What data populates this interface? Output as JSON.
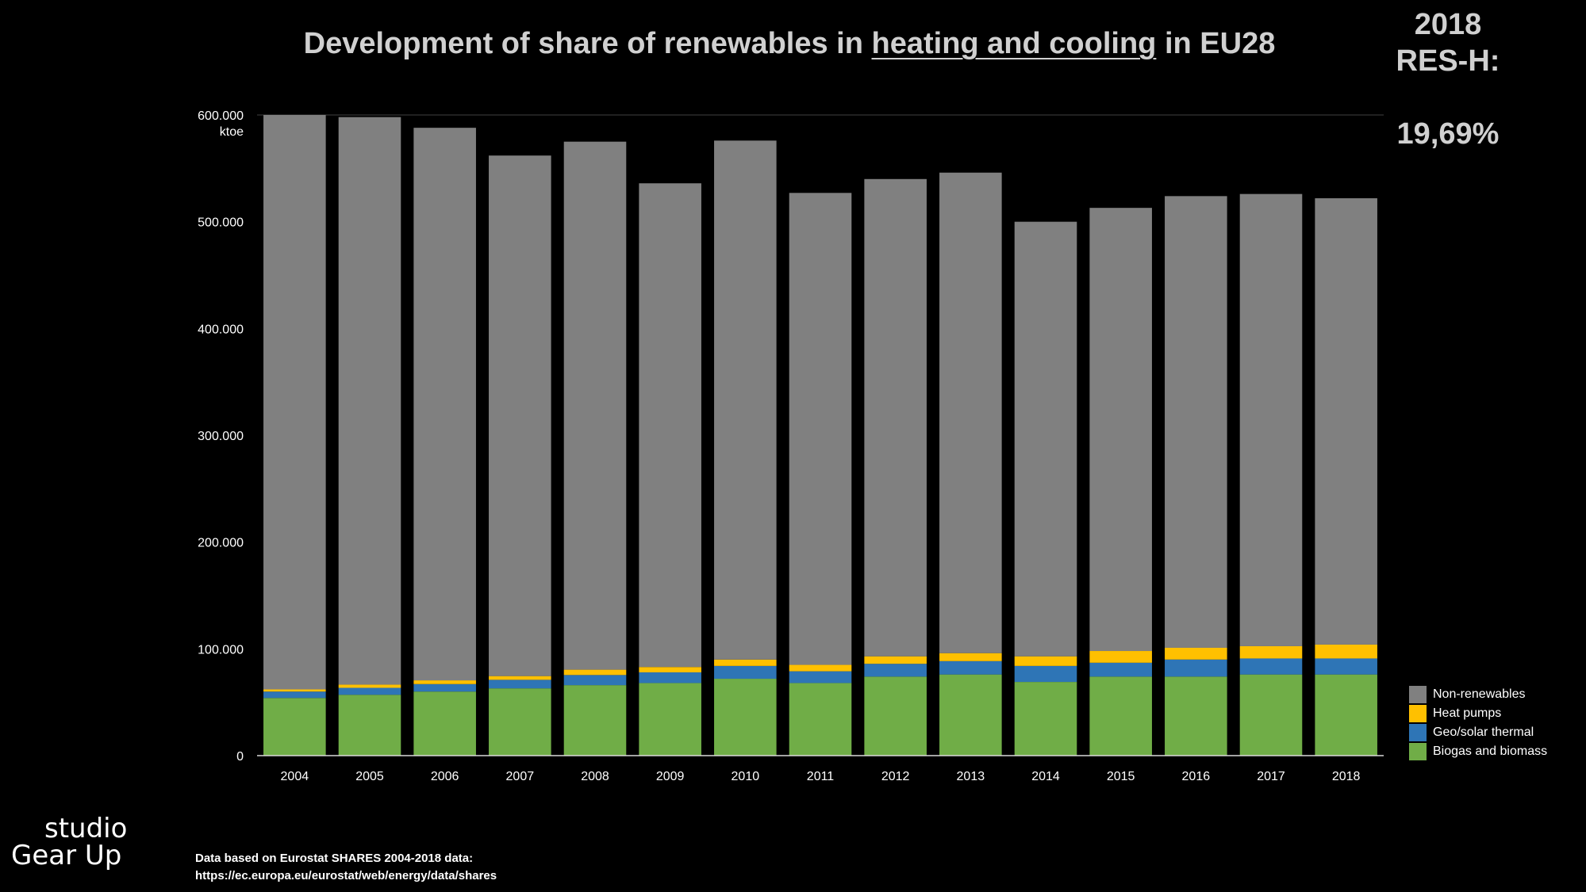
{
  "title": {
    "prefix": "Development of share of renewables in ",
    "underlined": "heating and cooling",
    "suffix": " in EU28"
  },
  "res_box": {
    "year": "2018",
    "label": "RES-H:",
    "value": "19,69%"
  },
  "logo": {
    "line1": "studio",
    "line2": "Gear Up"
  },
  "source": {
    "line1": "Data  based on Eurostat SHARES 2004-2018 data:",
    "line2": "https://ec.europa.eu/eurostat/web/energy/data/shares"
  },
  "colors": {
    "non_renewables": "#808080",
    "heat_pumps": "#FFC000",
    "geo_solar": "#2E75B6",
    "biogas": "#70AD47",
    "background": "#000000"
  },
  "chart_data": {
    "type": "bar",
    "stacked": true,
    "ylim": [
      0,
      600000
    ],
    "ytick_values": [
      0,
      100000,
      200000,
      300000,
      400000,
      500000,
      600000
    ],
    "ytick_labels": [
      "0",
      "100.000",
      "200.000",
      "300.000",
      "400.000",
      "500.000",
      "600.000"
    ],
    "yunit": "ktoe",
    "grid": false,
    "legend_position": "bottom-right",
    "categories": [
      "2004",
      "2005",
      "2006",
      "2007",
      "2008",
      "2009",
      "2010",
      "2011",
      "2012",
      "2013",
      "2014",
      "2015",
      "2016",
      "2017",
      "2018"
    ],
    "series": [
      {
        "name": "Biogas and biomass",
        "color": "#70AD47",
        "values": [
          54000,
          57000,
          60000,
          63000,
          66000,
          68000,
          72000,
          68000,
          74000,
          76000,
          69000,
          74000,
          74000,
          76000,
          76000
        ]
      },
      {
        "name": "Geo/solar thermal",
        "color": "#2E75B6",
        "values": [
          6000,
          6500,
          7000,
          8000,
          9500,
          10000,
          12000,
          11000,
          12000,
          12500,
          15000,
          13000,
          16000,
          15000,
          15000
        ]
      },
      {
        "name": "Heat pumps",
        "color": "#FFC000",
        "values": [
          2000,
          3000,
          3500,
          3500,
          5000,
          5000,
          6000,
          6000,
          7000,
          7500,
          9000,
          11000,
          11000,
          11500,
          13000
        ]
      },
      {
        "name": "Non-renewables",
        "color": "#808080",
        "values": [
          538000,
          531500,
          517500,
          487500,
          494500,
          453000,
          486000,
          442000,
          447000,
          450000,
          407000,
          415000,
          423000,
          423500,
          418000
        ]
      }
    ],
    "legend_order": [
      "Non-renewables",
      "Heat pumps",
      "Geo/solar thermal",
      "Biogas and biomass"
    ]
  }
}
